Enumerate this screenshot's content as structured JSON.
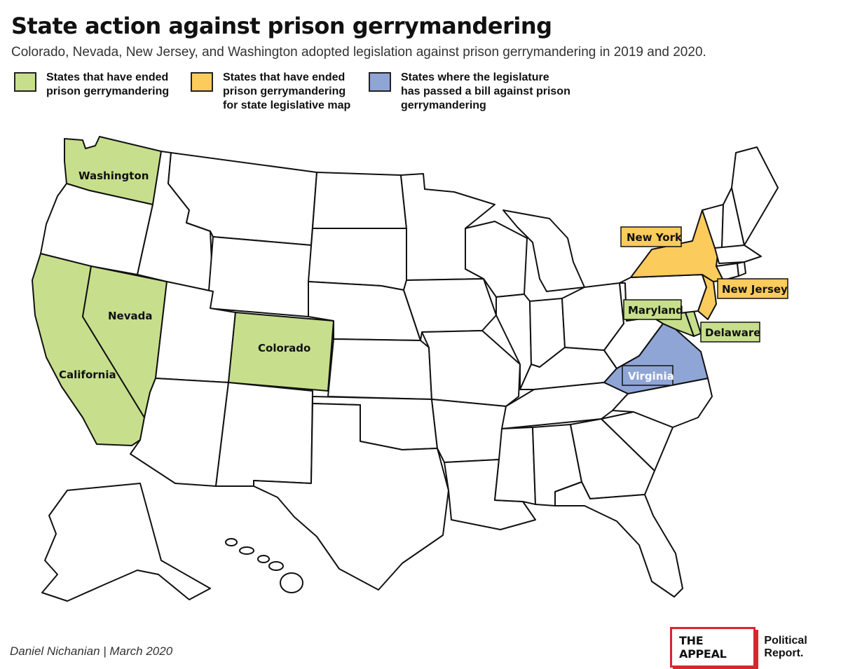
{
  "header": {
    "title": "State action against prison gerrymandering",
    "subtitle": "Colorado, Nevada, New Jersey, and Washington adopted legislation against prison gerrymandering in 2019 and 2020."
  },
  "legend": [
    {
      "label": "States that have ended\nprison gerrymandering",
      "color": "#c7df8c"
    },
    {
      "label": "States that have ended\nprison gerrymandering\nfor state legislative map",
      "color": "#fbcb5c"
    },
    {
      "label": "States where the legislature\nhas passed a bill against prison\ngerrymandering",
      "color": "#8ea5d6"
    }
  ],
  "colors": {
    "ended": "#c7df8c",
    "legislative": "#fbcb5c",
    "bill_passed": "#8ea5d6",
    "other": "#ffffff",
    "brand_red": "#d9262e"
  },
  "map": {
    "labels": {
      "washington": "Washington",
      "nevada": "Nevada",
      "california": "California",
      "colorado": "Colorado",
      "new_york": "New York",
      "new_jersey": "New Jersey",
      "maryland": "Maryland",
      "delaware": "Delaware",
      "virginia": "Virginia"
    },
    "state_status": {
      "washington": "ended",
      "california": "ended",
      "nevada": "ended",
      "colorado": "ended",
      "maryland": "ended",
      "delaware": "ended",
      "new_york": "legislative",
      "new_jersey": "legislative",
      "virginia": "bill_passed"
    }
  },
  "footer": {
    "credit": "Daniel Nichanian | March 2020",
    "brand": "THE APPEAL",
    "brand_sub": "Political Report."
  }
}
